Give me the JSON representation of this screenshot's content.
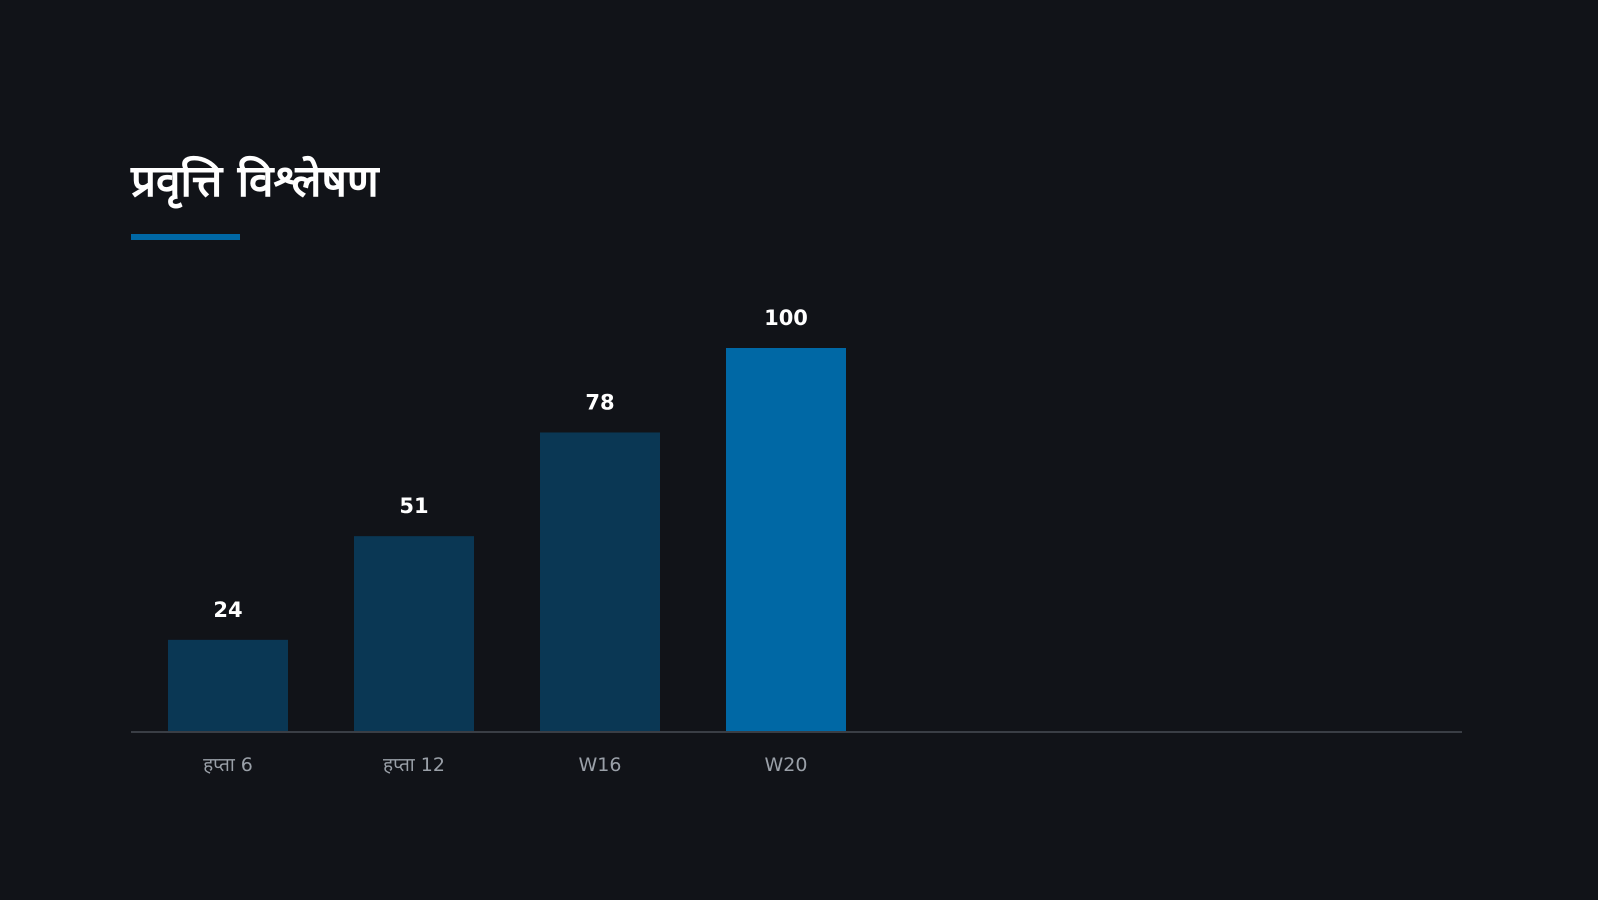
{
  "slide": {
    "title": "प्रवृत्ति विश्लेषण"
  },
  "colors": {
    "background": "#111318",
    "bar": "#0a3754",
    "bar_highlight": "#0068a5",
    "accent": "#0068a5",
    "axis": "#3a3e45",
    "tick_label": "#9aa0a8",
    "value_label": "#ffffff"
  },
  "chart_data": {
    "type": "bar",
    "title": "प्रवृत्ति विश्लेषण",
    "categories": [
      "हप्ता 6",
      "हप्ता 12",
      "W16",
      "W20"
    ],
    "values": [
      24,
      51,
      78,
      100
    ],
    "highlight_index": 3,
    "ylim": [
      0,
      100
    ],
    "grid": false,
    "legend": "none",
    "data_labels": true
  }
}
